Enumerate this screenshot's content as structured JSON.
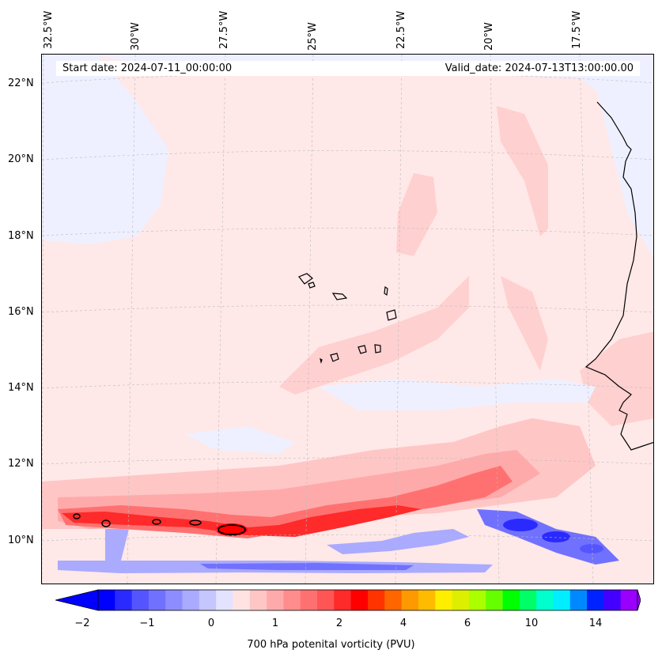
{
  "map": {
    "lon_labels": [
      "32.5°W",
      "30°W",
      "27.5°W",
      "25°W",
      "22.5°W",
      "20°W",
      "17.5°W"
    ],
    "lat_labels": [
      "22°N",
      "20°N",
      "18°N",
      "16°N",
      "14°N",
      "12°N",
      "10°N"
    ],
    "start_date": "Start date: 2024-07-11_00:00:00",
    "valid_date": "Valid_date: 2024-07-13T13:00:00.00"
  },
  "colorbar": {
    "label": "700 hPa potenital vorticity (PVU)",
    "ticks": [
      "−2",
      "−1",
      "0",
      "1",
      "2",
      "4",
      "6",
      "10",
      "14"
    ],
    "colors": [
      "#0000ff",
      "#2a2aff",
      "#5555ff",
      "#7171ff",
      "#8d8dff",
      "#aaaaff",
      "#c6c6ff",
      "#e3e3ff",
      "#ffe3e3",
      "#ffc6c6",
      "#ffaaaa",
      "#ff8d8d",
      "#ff7171",
      "#ff5555",
      "#ff2a2a",
      "#ff0000",
      "#ff3300",
      "#ff6600",
      "#ff9900",
      "#ffbb00",
      "#ffee00",
      "#ddee00",
      "#aaff00",
      "#66ff00",
      "#00ff00",
      "#00ff66",
      "#00ffcc",
      "#00eeff",
      "#0088ff",
      "#0022ff",
      "#4400ff",
      "#9900ff"
    ]
  }
}
